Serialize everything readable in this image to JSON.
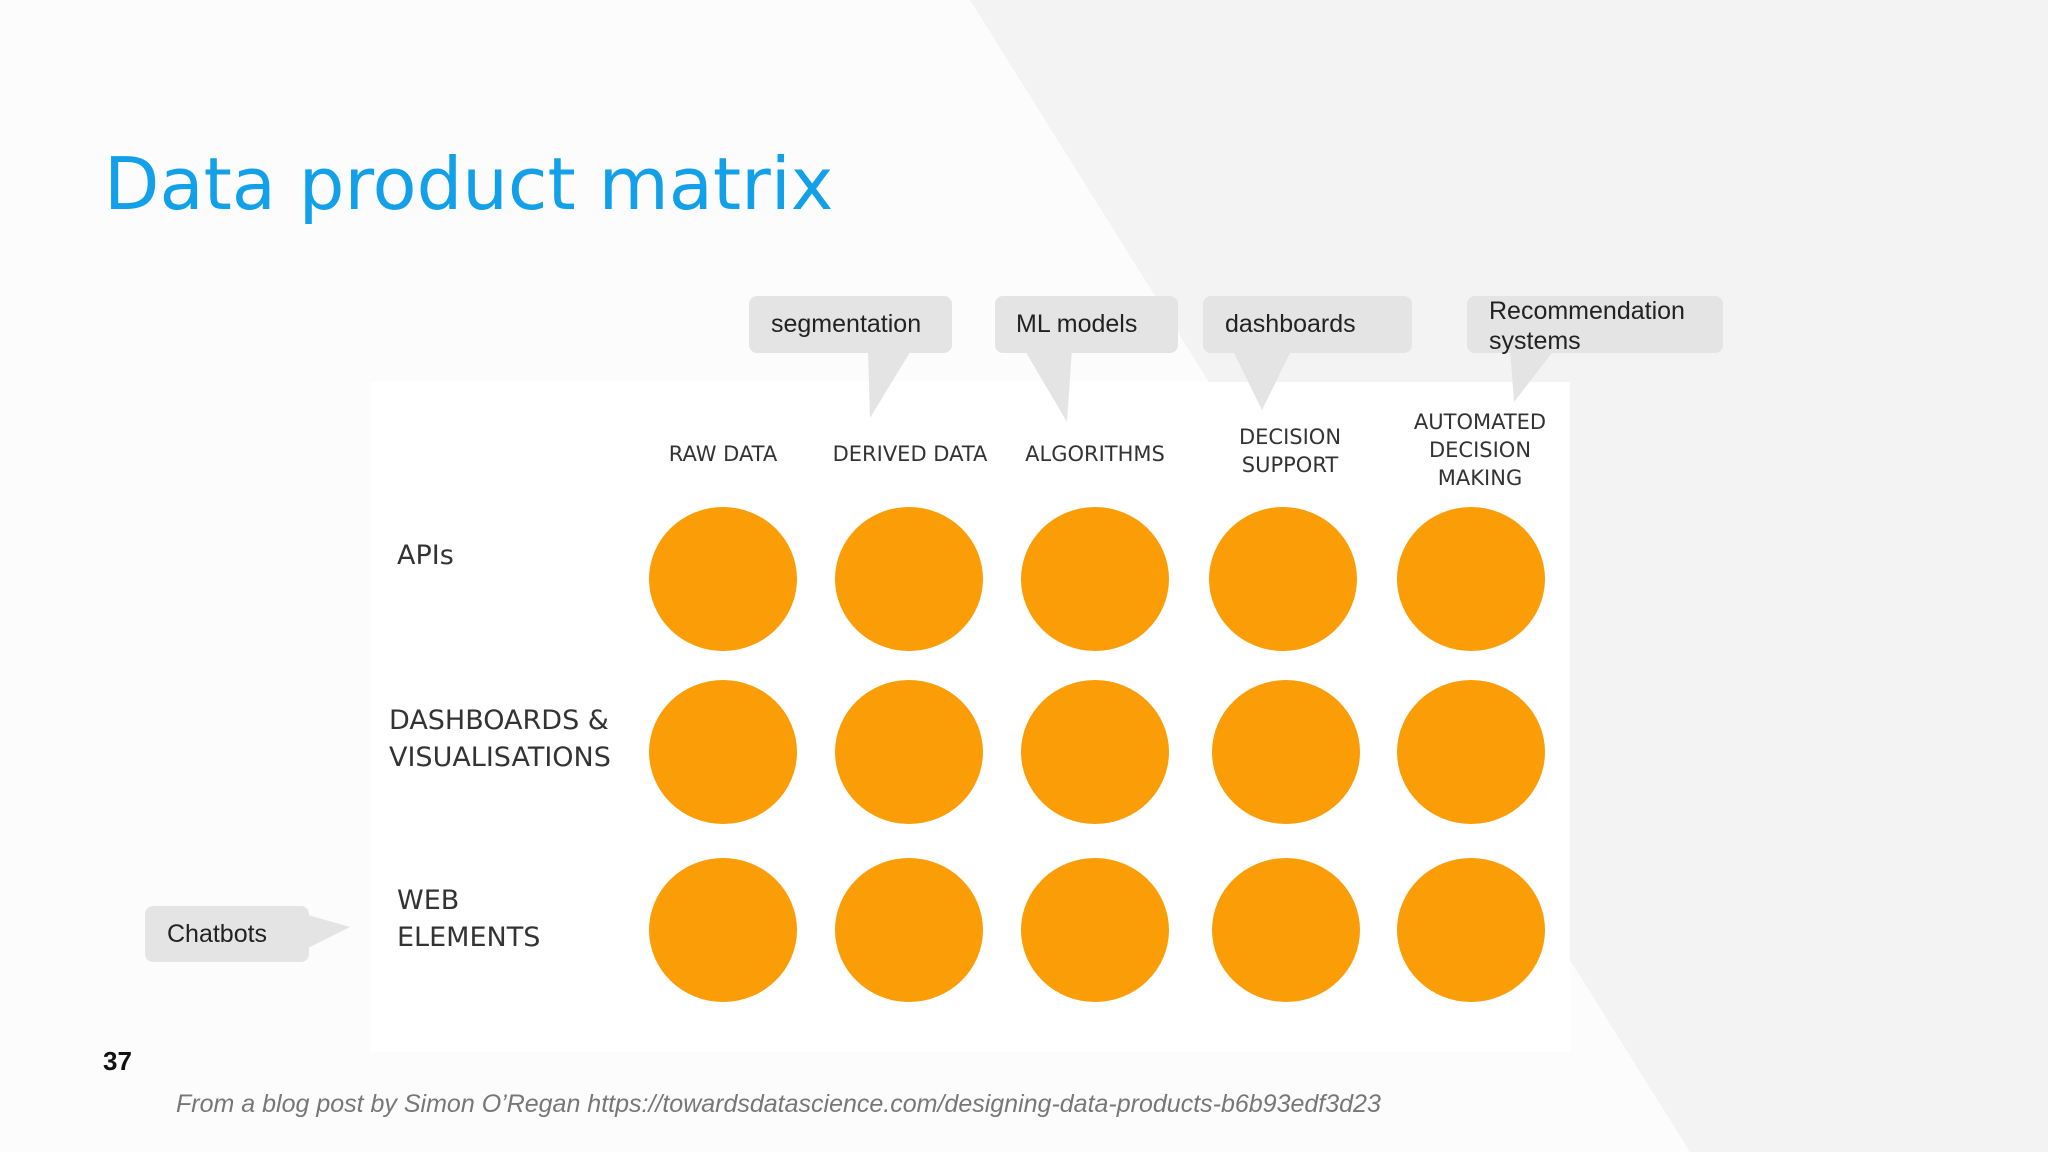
{
  "slide": {
    "title": "Data product matrix",
    "page_number": "37",
    "footer": "From a blog post by Simon O’Regan https://towardsdatascience.com/designing-data-products-b6b93edf3d23"
  },
  "matrix": {
    "columns": [
      "RAW DATA",
      "DERIVED DATA",
      "ALGORITHMS",
      "DECISION\nSUPPORT",
      "AUTOMATED\nDECISION\nMAKING"
    ],
    "rows": [
      "APIs",
      "DASHBOARDS &\nVISUALISATIONS",
      "WEB\nELEMENTS"
    ],
    "dot_color": "#fa9d07"
  },
  "callouts": {
    "segmentation": "segmentation",
    "ml_models": "ML models",
    "dashboards": "dashboards",
    "recommendation": "Recommendation\nsystems",
    "chatbots": "Chatbots"
  },
  "colors": {
    "title": "#12a0e8",
    "callout_bg": "#e4e4e5"
  }
}
